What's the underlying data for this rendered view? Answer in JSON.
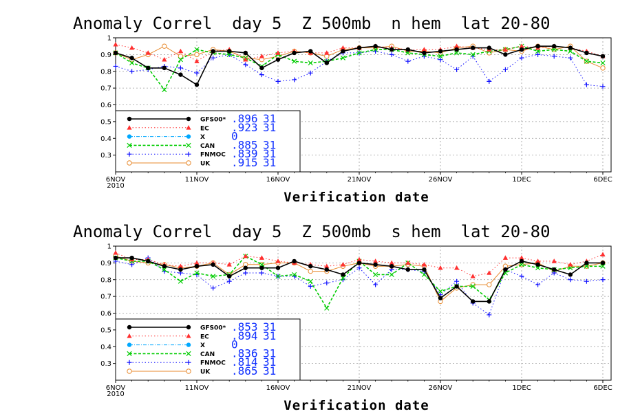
{
  "chart_data": [
    {
      "type": "line",
      "title": "Anomaly Correl  day 5  Z 500mb  n hem  lat 20-80",
      "xlabel": "Verification date",
      "ylim": [
        0.2,
        1.0
      ],
      "yticks": [
        "1",
        "0.9",
        "0.8",
        "0.7",
        "0.6",
        "0.5",
        "0.4",
        "0.3"
      ],
      "xticks": [
        {
          "label": "6NOV",
          "sub": "2010",
          "day": 1
        },
        {
          "label": "11NOV",
          "sub": "",
          "day": 6
        },
        {
          "label": "16NOV",
          "sub": "",
          "day": 11
        },
        {
          "label": "21NOV",
          "sub": "",
          "day": 16
        },
        {
          "label": "26NOV",
          "sub": "",
          "day": 21
        },
        {
          "label": "1DEC",
          "sub": "",
          "day": 26
        },
        {
          "label": "6DEC",
          "sub": "",
          "day": 31
        }
      ],
      "series": [
        {
          "name": "GFS00*",
          "score": ".896",
          "count": "31",
          "color": "#000000",
          "style": "solid",
          "marker": "dot",
          "values": [
            0.91,
            0.88,
            0.82,
            0.82,
            0.78,
            0.72,
            0.92,
            0.92,
            0.91,
            0.82,
            0.87,
            0.91,
            0.92,
            0.85,
            0.92,
            0.94,
            0.95,
            0.93,
            0.93,
            0.91,
            0.92,
            0.93,
            0.94,
            0.94,
            0.9,
            0.93,
            0.95,
            0.95,
            0.94,
            0.91,
            0.89
          ]
        },
        {
          "name": "EC",
          "score": ".923",
          "count": "31",
          "color": "#ff3030",
          "style": "dotted",
          "marker": "triangle",
          "values": [
            0.96,
            0.94,
            0.91,
            0.87,
            0.92,
            0.86,
            0.92,
            0.93,
            0.87,
            0.89,
            0.91,
            0.92,
            0.91,
            0.91,
            0.94,
            0.94,
            0.95,
            0.94,
            0.93,
            0.93,
            0.93,
            0.95,
            0.94,
            0.93,
            0.93,
            0.95,
            0.94,
            0.95,
            0.94,
            0.92,
            0.89
          ]
        },
        {
          "name": "X",
          "score": "0",
          "count": "",
          "color": "#00a8ff",
          "style": "dashdot",
          "marker": "cdot",
          "values": []
        },
        {
          "name": "CAN",
          "score": ".885",
          "count": "31",
          "color": "#00cc00",
          "style": "dashed",
          "marker": "x",
          "values": [
            0.91,
            0.85,
            0.82,
            0.69,
            0.87,
            0.93,
            0.91,
            0.9,
            0.88,
            0.83,
            0.9,
            0.86,
            0.85,
            0.86,
            0.88,
            0.91,
            0.93,
            0.93,
            0.91,
            0.9,
            0.89,
            0.91,
            0.9,
            0.92,
            0.93,
            0.95,
            0.92,
            0.93,
            0.92,
            0.86,
            0.85
          ]
        },
        {
          "name": "FNMOC",
          "score": ".839",
          "count": "31",
          "color": "#1010ff",
          "style": "dotted",
          "marker": "plus",
          "values": [
            0.83,
            0.8,
            0.81,
            0.83,
            0.82,
            0.79,
            0.88,
            0.9,
            0.84,
            0.78,
            0.74,
            0.75,
            0.79,
            0.86,
            0.91,
            0.91,
            0.92,
            0.9,
            0.86,
            0.89,
            0.87,
            0.81,
            0.89,
            0.74,
            0.81,
            0.88,
            0.9,
            0.89,
            0.88,
            0.72,
            0.71
          ]
        },
        {
          "name": "UK",
          "score": ".915",
          "count": "31",
          "color": "#e88a2e",
          "style": "solid",
          "marker": "circle",
          "values": [
            0.91,
            0.87,
            0.9,
            0.95,
            0.89,
            0.9,
            0.93,
            0.92,
            0.88,
            0.87,
            0.89,
            0.92,
            0.91,
            0.89,
            0.93,
            0.94,
            0.94,
            0.95,
            0.92,
            0.92,
            0.91,
            0.94,
            0.95,
            0.91,
            0.93,
            0.92,
            0.95,
            0.93,
            0.95,
            0.86,
            0.82
          ]
        }
      ]
    },
    {
      "type": "line",
      "title": "Anomaly Correl  day 5  Z 500mb  s hem  lat 20-80",
      "xlabel": "Verification date",
      "ylim": [
        0.2,
        1.0
      ],
      "yticks": [
        "1",
        "0.9",
        "0.8",
        "0.7",
        "0.6",
        "0.5",
        "0.4",
        "0.3"
      ],
      "xticks": [
        {
          "label": "6NOV",
          "sub": "2010",
          "day": 1
        },
        {
          "label": "11NOV",
          "sub": "",
          "day": 6
        },
        {
          "label": "16NOV",
          "sub": "",
          "day": 11
        },
        {
          "label": "21NOV",
          "sub": "",
          "day": 16
        },
        {
          "label": "26NOV",
          "sub": "",
          "day": 21
        },
        {
          "label": "1DEC",
          "sub": "",
          "day": 26
        },
        {
          "label": "6DEC",
          "sub": "",
          "day": 31
        }
      ],
      "series": [
        {
          "name": "GFS00*",
          "score": ".853",
          "count": "31",
          "color": "#000000",
          "style": "solid",
          "marker": "dot",
          "values": [
            0.93,
            0.93,
            0.91,
            0.88,
            0.86,
            0.88,
            0.89,
            0.82,
            0.87,
            0.87,
            0.87,
            0.91,
            0.88,
            0.86,
            0.83,
            0.9,
            0.89,
            0.88,
            0.86,
            0.86,
            0.69,
            0.76,
            0.67,
            0.67,
            0.86,
            0.91,
            0.89,
            0.86,
            0.83,
            0.9,
            0.9
          ]
        },
        {
          "name": "EC",
          "score": ".894",
          "count": "31",
          "color": "#ff3030",
          "style": "dotted",
          "marker": "triangle",
          "values": [
            0.96,
            0.92,
            0.92,
            0.89,
            0.88,
            0.9,
            0.9,
            0.89,
            0.94,
            0.93,
            0.91,
            0.9,
            0.89,
            0.88,
            0.89,
            0.92,
            0.91,
            0.9,
            0.9,
            0.89,
            0.87,
            0.87,
            0.82,
            0.84,
            0.93,
            0.93,
            0.91,
            0.91,
            0.89,
            0.91,
            0.95
          ]
        },
        {
          "name": "X",
          "score": "0",
          "count": "",
          "color": "#00a8ff",
          "style": "dashdot",
          "marker": "cdot",
          "values": []
        },
        {
          "name": "CAN",
          "score": ".836",
          "count": "31",
          "color": "#00cc00",
          "style": "dashed",
          "marker": "x",
          "values": [
            0.93,
            0.91,
            0.91,
            0.86,
            0.79,
            0.84,
            0.82,
            0.83,
            0.94,
            0.89,
            0.82,
            0.83,
            0.79,
            0.63,
            0.81,
            0.91,
            0.83,
            0.83,
            0.9,
            0.83,
            0.73,
            0.76,
            0.76,
            0.68,
            0.84,
            0.89,
            0.87,
            0.86,
            0.87,
            0.88,
            0.88
          ]
        },
        {
          "name": "FNMOC",
          "score": ".814",
          "count": "31",
          "color": "#1010ff",
          "style": "dotted",
          "marker": "plus",
          "values": [
            0.91,
            0.89,
            0.93,
            0.85,
            0.84,
            0.83,
            0.75,
            0.79,
            0.84,
            0.84,
            0.82,
            0.82,
            0.76,
            0.78,
            0.8,
            0.87,
            0.77,
            0.86,
            0.86,
            0.85,
            0.71,
            0.79,
            0.66,
            0.59,
            0.86,
            0.82,
            0.77,
            0.84,
            0.8,
            0.79,
            0.8
          ]
        },
        {
          "name": "UK",
          "score": ".865",
          "count": "31",
          "color": "#e88a2e",
          "style": "solid",
          "marker": "circle",
          "values": [
            0.94,
            0.91,
            0.9,
            0.89,
            0.87,
            0.88,
            0.9,
            0.83,
            0.89,
            0.89,
            0.9,
            0.9,
            0.85,
            0.85,
            0.88,
            0.9,
            0.88,
            0.88,
            0.89,
            0.88,
            0.67,
            0.75,
            0.77,
            0.77,
            0.88,
            0.89,
            0.9,
            0.85,
            0.88,
            0.88,
            0.9
          ]
        }
      ]
    }
  ]
}
